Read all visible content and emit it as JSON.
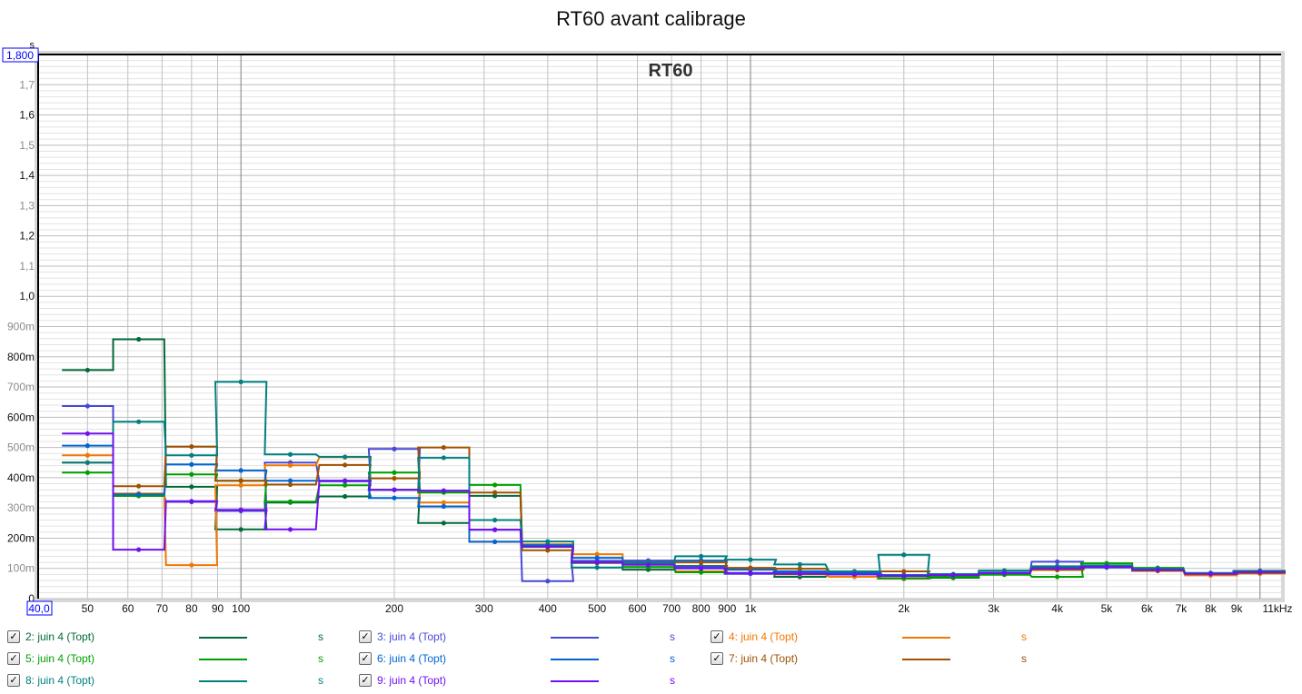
{
  "chart_data": {
    "type": "line",
    "title": "RT60 avant calibrage",
    "inner_title": "RT60",
    "y_unit": "s",
    "xlabel_unit": "Hz",
    "x_scale": "log",
    "xlim": [
      40,
      11000
    ],
    "ylim": [
      0,
      1.8
    ],
    "y_top_label": "1,800",
    "x_left_label": "40,0",
    "y_ticks": [
      {
        "v": 0,
        "label": "0"
      },
      {
        "v": 0.1,
        "label": "100m"
      },
      {
        "v": 0.2,
        "label": "200m"
      },
      {
        "v": 0.3,
        "label": "300m"
      },
      {
        "v": 0.4,
        "label": "400m"
      },
      {
        "v": 0.5,
        "label": "500m"
      },
      {
        "v": 0.6,
        "label": "600m"
      },
      {
        "v": 0.7,
        "label": "700m"
      },
      {
        "v": 0.8,
        "label": "800m"
      },
      {
        "v": 0.9,
        "label": "900m"
      },
      {
        "v": 1.0,
        "label": "1,0"
      },
      {
        "v": 1.1,
        "label": "1,1"
      },
      {
        "v": 1.2,
        "label": "1,2"
      },
      {
        "v": 1.3,
        "label": "1,3"
      },
      {
        "v": 1.4,
        "label": "1,4"
      },
      {
        "v": 1.5,
        "label": "1,5"
      },
      {
        "v": 1.6,
        "label": "1,6"
      },
      {
        "v": 1.7,
        "label": "1,7"
      }
    ],
    "x_ticks": [
      {
        "v": 50,
        "label": "50"
      },
      {
        "v": 60,
        "label": "60"
      },
      {
        "v": 70,
        "label": "70"
      },
      {
        "v": 80,
        "label": "80"
      },
      {
        "v": 90,
        "label": "90"
      },
      {
        "v": 100,
        "label": "100"
      },
      {
        "v": 200,
        "label": "200"
      },
      {
        "v": 300,
        "label": "300"
      },
      {
        "v": 400,
        "label": "400"
      },
      {
        "v": 500,
        "label": "500"
      },
      {
        "v": 600,
        "label": "600"
      },
      {
        "v": 700,
        "label": "700"
      },
      {
        "v": 800,
        "label": "800"
      },
      {
        "v": 900,
        "label": "900"
      },
      {
        "v": 1000,
        "label": "1k"
      },
      {
        "v": 2000,
        "label": "2k"
      },
      {
        "v": 3000,
        "label": "3k"
      },
      {
        "v": 4000,
        "label": "4k"
      },
      {
        "v": 5000,
        "label": "5k"
      },
      {
        "v": 6000,
        "label": "6k"
      },
      {
        "v": 7000,
        "label": "7k"
      },
      {
        "v": 8000,
        "label": "8k"
      },
      {
        "v": 9000,
        "label": "9k"
      },
      {
        "v": 11000,
        "label": "11kHz"
      }
    ],
    "grid": true,
    "legend_placement": "bottom",
    "bands_hz": [
      50,
      63,
      80,
      100,
      125,
      160,
      200,
      250,
      315,
      400,
      500,
      630,
      800,
      1000,
      1250,
      1600,
      2000,
      2500,
      3150,
      4000,
      5000,
      6300,
      8000,
      10000
    ],
    "series": [
      {
        "name": "2: juin 4 (Topt)",
        "unit": "s",
        "color": "#006a3a",
        "values": [
          0.756,
          0.858,
          0.37,
          0.229,
          0.318,
          0.338,
          0.36,
          0.25,
          0.34,
          0.172,
          0.12,
          0.096,
          0.108,
          0.099,
          0.072,
          0.08,
          0.066,
          0.069,
          0.08,
          0.1,
          0.105,
          0.095,
          0.082,
          0.088
        ]
      },
      {
        "name": "3: juin 4 (Topt)",
        "unit": "s",
        "color": "#4848d8",
        "values": [
          0.637,
          0.34,
          0.32,
          0.29,
          0.45,
          0.388,
          0.495,
          0.357,
          0.228,
          0.058,
          0.125,
          0.126,
          0.105,
          0.082,
          0.085,
          0.08,
          0.075,
          0.078,
          0.085,
          0.122,
          0.105,
          0.095,
          0.082,
          0.088
        ]
      },
      {
        "name": "4: juin 4 (Topt)",
        "unit": "s",
        "color": "#f07800",
        "values": [
          0.474,
          0.348,
          0.111,
          0.375,
          0.441,
          0.468,
          0.36,
          0.318,
          0.188,
          0.18,
          0.147,
          0.118,
          0.09,
          0.097,
          0.08,
          0.072,
          0.067,
          0.076,
          0.082,
          0.1,
          0.105,
          0.092,
          0.077,
          0.083
        ]
      },
      {
        "name": "5: juin 4 (Topt)",
        "unit": "s",
        "color": "#00a000",
        "values": [
          0.417,
          0.34,
          0.411,
          0.39,
          0.321,
          0.375,
          0.417,
          0.351,
          0.376,
          0.171,
          0.118,
          0.105,
          0.087,
          0.097,
          0.082,
          0.08,
          0.068,
          0.072,
          0.079,
          0.072,
          0.117,
          0.102,
          0.083,
          0.088
        ]
      },
      {
        "name": "6: juin 4 (Topt)",
        "unit": "s",
        "color": "#0064d2",
        "values": [
          0.506,
          0.345,
          0.444,
          0.424,
          0.39,
          0.39,
          0.333,
          0.305,
          0.188,
          0.177,
          0.135,
          0.114,
          0.126,
          0.096,
          0.09,
          0.084,
          0.078,
          0.078,
          0.086,
          0.105,
          0.103,
          0.094,
          0.084,
          0.09
        ]
      },
      {
        "name": "7: juin 4 (Topt)",
        "unit": "s",
        "color": "#a05000",
        "values": [
          0.45,
          0.372,
          0.503,
          0.39,
          0.377,
          0.442,
          0.398,
          0.5,
          0.351,
          0.16,
          0.119,
          0.12,
          0.12,
          0.102,
          0.099,
          0.09,
          0.09,
          0.08,
          0.084,
          0.095,
          0.105,
          0.092,
          0.082,
          0.085
        ]
      },
      {
        "name": "8: juin 4 (Topt)",
        "unit": "s",
        "color": "#008080",
        "values": [
          0.45,
          0.585,
          0.474,
          0.717,
          0.477,
          0.469,
          0.36,
          0.466,
          0.26,
          0.189,
          0.103,
          0.12,
          0.14,
          0.129,
          0.113,
          0.09,
          0.145,
          0.081,
          0.093,
          0.107,
          0.11,
          0.099,
          0.085,
          0.092
        ]
      },
      {
        "name": "9: juin 4 (Topt)",
        "unit": "s",
        "color": "#7010f0",
        "values": [
          0.546,
          0.162,
          0.322,
          0.294,
          0.229,
          0.39,
          0.36,
          0.357,
          0.228,
          0.172,
          0.12,
          0.112,
          0.1,
          0.085,
          0.082,
          0.08,
          0.075,
          0.078,
          0.084,
          0.1,
          0.105,
          0.095,
          0.082,
          0.088
        ]
      }
    ]
  },
  "legend": {
    "checked": true,
    "check_glyph": "✓"
  }
}
